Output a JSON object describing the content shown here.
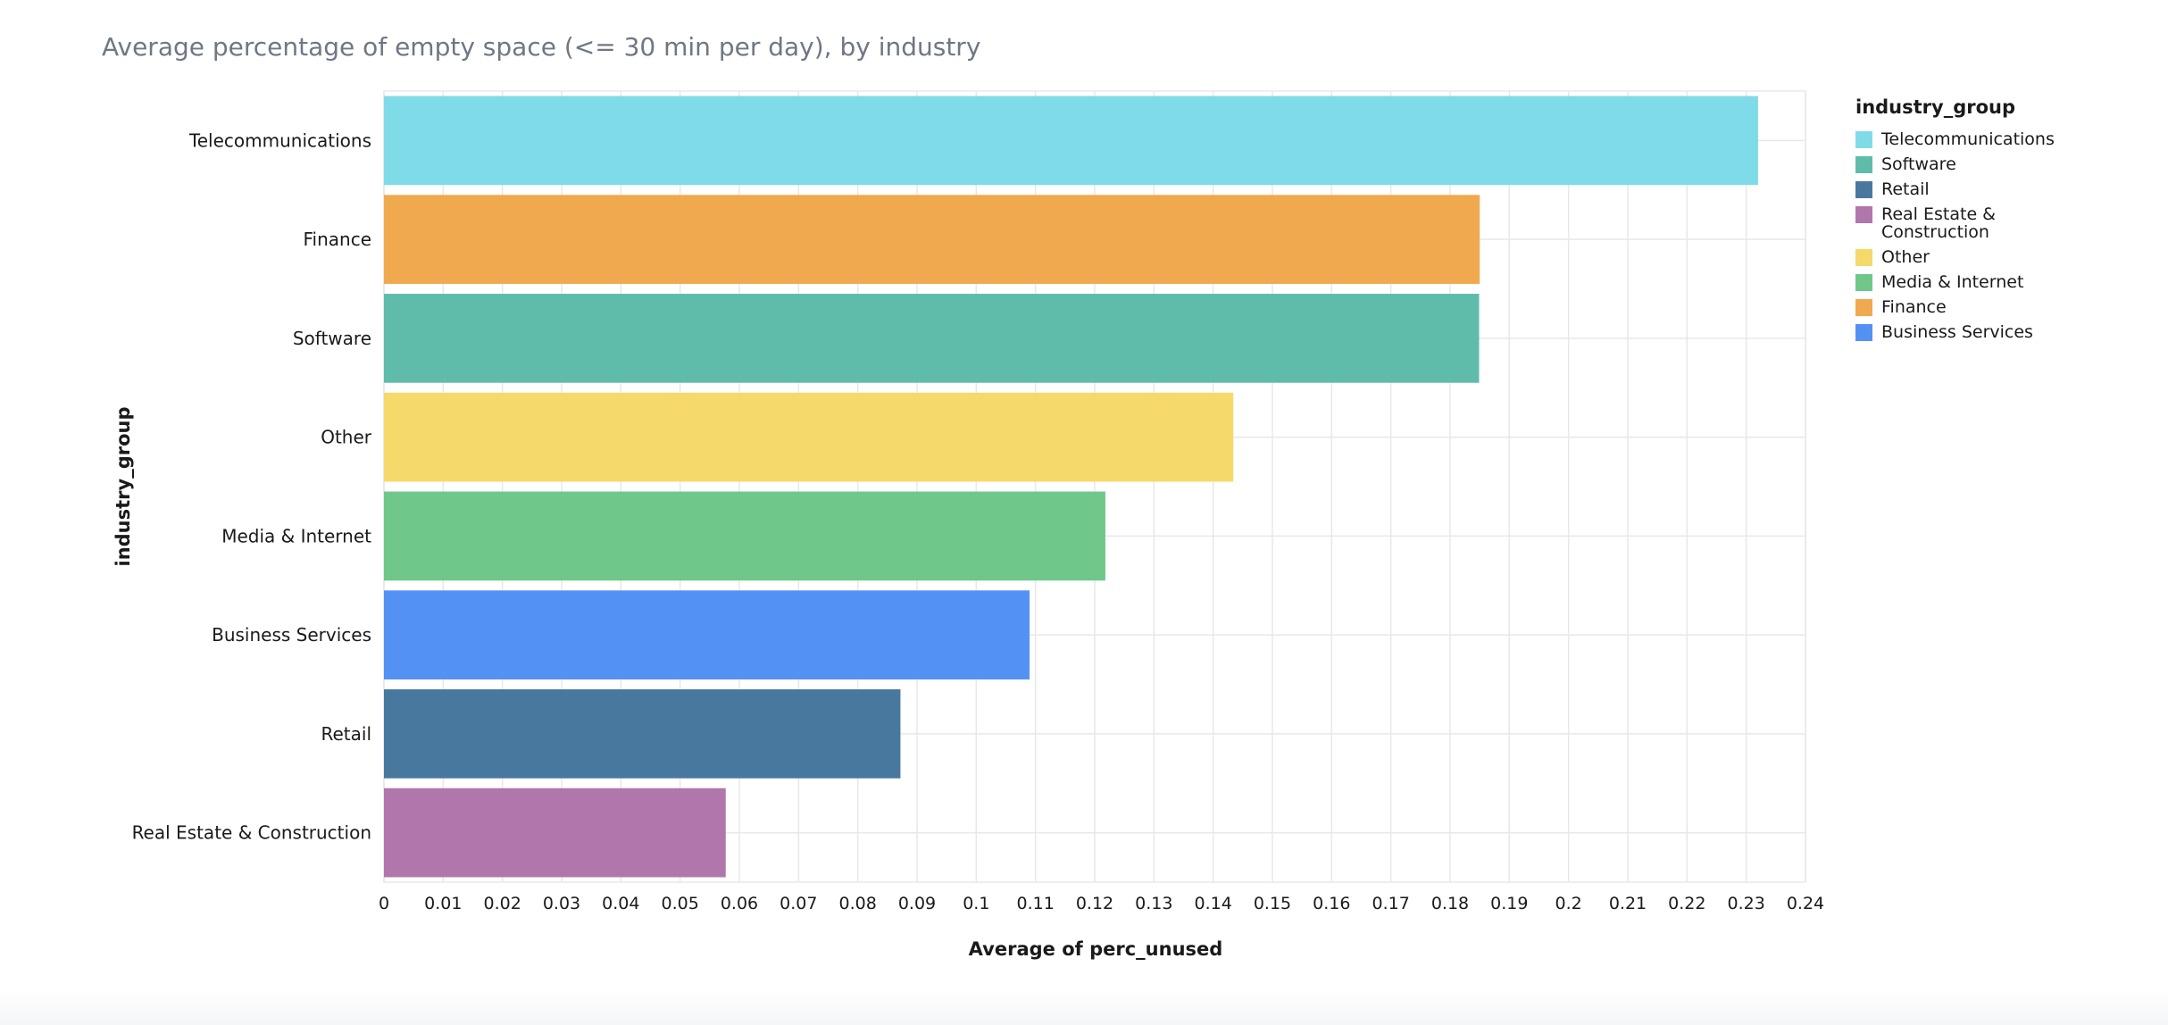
{
  "chart_data": {
    "type": "bar",
    "orientation": "horizontal",
    "title": "Average percentage of empty space (<= 30 min per day), by industry",
    "xlabel": "Average of perc_unused",
    "ylabel": "industry_group",
    "xlim": [
      0,
      0.24
    ],
    "x_ticks": [
      "0",
      "0.01",
      "0.02",
      "0.03",
      "0.04",
      "0.05",
      "0.06",
      "0.07",
      "0.08",
      "0.09",
      "0.1",
      "0.11",
      "0.12",
      "0.13",
      "0.14",
      "0.15",
      "0.16",
      "0.17",
      "0.18",
      "0.19",
      "0.2",
      "0.21",
      "0.22",
      "0.23",
      "0.24"
    ],
    "grid": true,
    "legend_position": "right",
    "legend_title": "industry_group",
    "categories": [
      "Telecommunications",
      "Finance",
      "Software",
      "Other",
      "Media & Internet",
      "Business Services",
      "Retail",
      "Real Estate & Construction"
    ],
    "values": [
      0.232,
      0.185,
      0.1849,
      0.1434,
      0.1218,
      0.109,
      0.0872,
      0.0577
    ],
    "colors": [
      "#80dbe8",
      "#f1a950",
      "#5fbcaa",
      "#f5d96b",
      "#6fc78a",
      "#5391f5",
      "#49789f",
      "#b176ab"
    ]
  },
  "legend": {
    "title": "industry_group",
    "items": [
      {
        "label": "Telecommunications",
        "color": "#80dbe8"
      },
      {
        "label": "Software",
        "color": "#5fbcaa"
      },
      {
        "label": "Retail",
        "color": "#49789f"
      },
      {
        "label": "Real Estate & Construction",
        "color": "#b176ab"
      },
      {
        "label": "Other",
        "color": "#f5d96b"
      },
      {
        "label": "Media & Internet",
        "color": "#6fc78a"
      },
      {
        "label": "Finance",
        "color": "#f1a950"
      },
      {
        "label": "Business Services",
        "color": "#5391f5"
      }
    ]
  }
}
